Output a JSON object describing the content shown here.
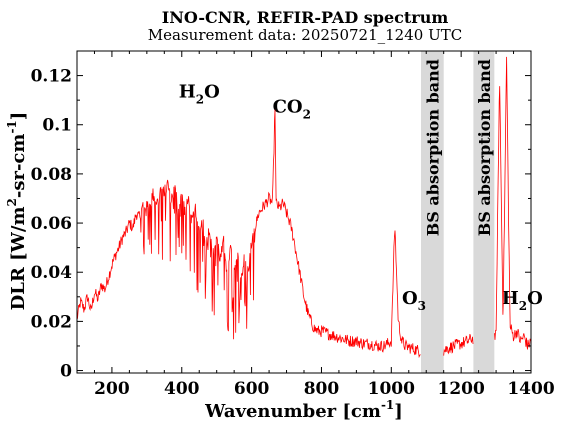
{
  "chart_data": {
    "type": "line",
    "title": "INO-CNR, REFIR-PAD spectrum",
    "subtitle": "Measurement data: 20250721_1240 UTC",
    "xlabel": {
      "main": "Wavenumber [cm",
      "sup": "-1",
      "end": "]"
    },
    "ylabel": {
      "p1": "DLR [W/m",
      "s1": "2",
      "p2": "-sr-cm",
      "s2": "-1",
      "p3": "]"
    },
    "xlim": [
      100,
      1400
    ],
    "ylim": [
      -0.001,
      0.13
    ],
    "xticks": [
      200,
      400,
      600,
      800,
      1000,
      1200,
      1400
    ],
    "xtick_labels": [
      "200",
      "400",
      "600",
      "800",
      "1000",
      "1200",
      "1400"
    ],
    "yticks": [
      0,
      0.02,
      0.04,
      0.06,
      0.08,
      0.1,
      0.12
    ],
    "ytick_labels": [
      "0",
      "0.02",
      "0.04",
      "0.06",
      "0.08",
      "0.1",
      "0.12"
    ],
    "grid": false,
    "line_color": "#ff0000",
    "band_color": "#d9d9d9",
    "bands": [
      {
        "x0": 1085,
        "x1": 1150,
        "label": "BS absorption band"
      },
      {
        "x0": 1235,
        "x1": 1295,
        "label": "BS absorption band"
      }
    ],
    "annotations": [
      {
        "base": "H",
        "sub": "2",
        "tail": "O",
        "x": 450,
        "y": 0.111
      },
      {
        "base": "CO",
        "sub": "2",
        "tail": "",
        "x": 715,
        "y": 0.105
      },
      {
        "base": "O",
        "sub": "3",
        "tail": "",
        "x": 1065,
        "y": 0.027
      },
      {
        "base": "H",
        "sub": "2",
        "tail": "O",
        "x": 1375,
        "y": 0.027
      }
    ],
    "series": [
      {
        "x": [
          100,
          110,
          120,
          130,
          140,
          150,
          160,
          170,
          180,
          190,
          200,
          210,
          220,
          230,
          240,
          250,
          260,
          270,
          280,
          290,
          300,
          310,
          320,
          330,
          340,
          350,
          360,
          370,
          380,
          390,
          400,
          410,
          420,
          430,
          440,
          450,
          460,
          470,
          480,
          490,
          500,
          510,
          520,
          530,
          540,
          550,
          560,
          570,
          580,
          590,
          600,
          610,
          620,
          630,
          640,
          650,
          660,
          667,
          670,
          680,
          690,
          700,
          710,
          720,
          730,
          740,
          750,
          760,
          770,
          780,
          790,
          800,
          820,
          840,
          860,
          880,
          900,
          920,
          940,
          960,
          980,
          1000,
          1010,
          1020,
          1030,
          1040,
          1060,
          1080,
          1150,
          1160,
          1180,
          1200,
          1220,
          1230,
          1300,
          1310,
          1320,
          1330,
          1340,
          1350,
          1360,
          1370,
          1380,
          1390,
          1400
        ],
        "y": [
          0.021,
          0.028,
          0.025,
          0.03,
          0.024,
          0.032,
          0.029,
          0.035,
          0.033,
          0.038,
          0.043,
          0.047,
          0.05,
          0.054,
          0.056,
          0.06,
          0.058,
          0.064,
          0.062,
          0.068,
          0.066,
          0.07,
          0.072,
          0.068,
          0.074,
          0.072,
          0.076,
          0.07,
          0.074,
          0.068,
          0.072,
          0.064,
          0.07,
          0.06,
          0.066,
          0.056,
          0.062,
          0.052,
          0.058,
          0.048,
          0.055,
          0.045,
          0.052,
          0.042,
          0.05,
          0.04,
          0.048,
          0.038,
          0.046,
          0.04,
          0.052,
          0.058,
          0.064,
          0.066,
          0.068,
          0.07,
          0.068,
          0.108,
          0.068,
          0.066,
          0.068,
          0.064,
          0.06,
          0.054,
          0.046,
          0.038,
          0.03,
          0.024,
          0.02,
          0.017,
          0.016,
          0.016,
          0.015,
          0.014,
          0.013,
          0.012,
          0.012,
          0.011,
          0.011,
          0.01,
          0.01,
          0.012,
          0.06,
          0.02,
          0.012,
          0.01,
          0.009,
          0.008,
          0.008,
          0.009,
          0.01,
          0.011,
          0.012,
          0.013,
          0.014,
          0.12,
          0.02,
          0.127,
          0.018,
          0.014,
          0.016,
          0.012,
          0.014,
          0.01,
          0.012
        ]
      }
    ]
  }
}
